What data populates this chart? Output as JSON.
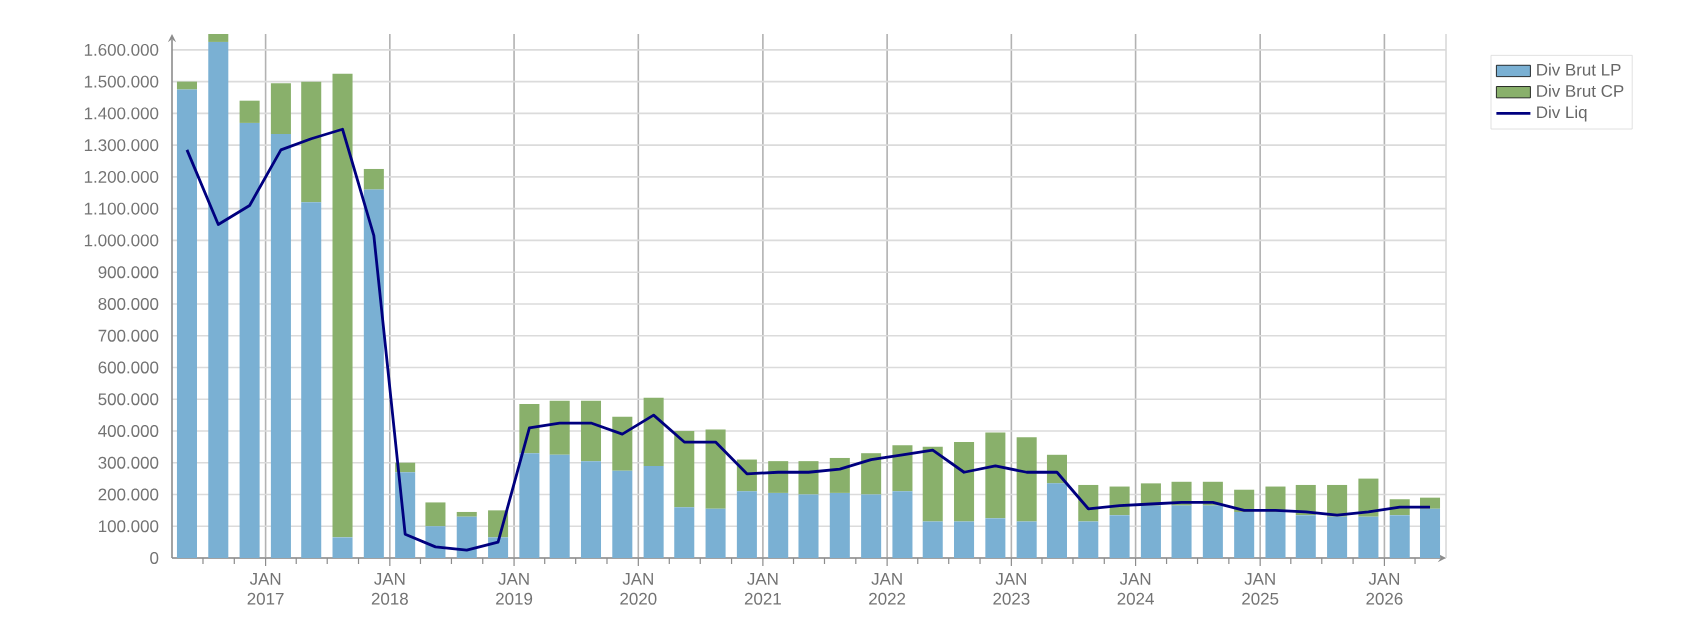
{
  "chart_data": {
    "type": "bar",
    "stacked": true,
    "grid": true,
    "legend": "right",
    "marker": "none",
    "line_style": "solid",
    "x": [
      "2016-05-15",
      "2016-08-15",
      "2016-11-15",
      "2017-02-15",
      "2017-05-15",
      "2017-08-15",
      "2017-11-15",
      "2018-02-15",
      "2018-05-15",
      "2018-08-15",
      "2018-11-15",
      "2019-02-15",
      "2019-05-15",
      "2019-08-15",
      "2019-11-15",
      "2020-02-15",
      "2020-05-15",
      "2020-08-15",
      "2020-11-15",
      "2021-02-15",
      "2021-05-15",
      "2021-08-15",
      "2021-11-15",
      "2022-02-15",
      "2022-05-15",
      "2022-08-15",
      "2022-11-15",
      "2023-02-15",
      "2023-05-15",
      "2023-08-15",
      "2023-11-15",
      "2024-02-15",
      "2024-05-15",
      "2024-08-15",
      "2024-11-15",
      "2025-02-15",
      "2025-05-15",
      "2025-08-15",
      "2025-11-15",
      "2026-02-15",
      "2026-05-15"
    ],
    "series": [
      {
        "name": "Div Brut LP",
        "color": "#7ab0d3",
        "values": [
          1475000,
          1625000,
          1370000,
          1335000,
          1120000,
          65000,
          1160000,
          270000,
          100000,
          130000,
          65000,
          330000,
          325000,
          305000,
          275000,
          290000,
          160000,
          155000,
          210000,
          205000,
          200000,
          205000,
          200000,
          210000,
          115000,
          115000,
          125000,
          115000,
          235000,
          115000,
          135000,
          165000,
          165000,
          165000,
          145000,
          145000,
          135000,
          130000,
          130000,
          135000,
          155000
        ]
      },
      {
        "name": "Div Brut CP",
        "color": "#89b06b",
        "values": [
          25000,
          25000,
          70000,
          160000,
          380000,
          1460000,
          65000,
          30000,
          75000,
          15000,
          85000,
          155000,
          170000,
          190000,
          170000,
          215000,
          240000,
          250000,
          100000,
          100000,
          105000,
          110000,
          130000,
          145000,
          235000,
          250000,
          270000,
          265000,
          90000,
          115000,
          90000,
          70000,
          75000,
          75000,
          70000,
          80000,
          95000,
          100000,
          120000,
          50000,
          35000
        ]
      },
      {
        "name": "Div Liq",
        "type": "line",
        "color": "#00007f",
        "values": [
          1285000,
          1050000,
          1110000,
          1285000,
          1320000,
          1350000,
          1015000,
          75000,
          35000,
          25000,
          50000,
          410000,
          425000,
          425000,
          390000,
          450000,
          365000,
          365000,
          265000,
          270000,
          270000,
          280000,
          310000,
          325000,
          340000,
          270000,
          290000,
          270000,
          270000,
          155000,
          165000,
          170000,
          175000,
          175000,
          150000,
          150000,
          145000,
          135000,
          145000,
          160000,
          160000
        ]
      }
    ],
    "xlim": [
      "2016-04-01",
      "2026-07-01"
    ],
    "xticks": [
      {
        "value": "2016-07-01",
        "label": null
      },
      {
        "value": "2016-10-01",
        "label": null
      },
      {
        "value": "2017-01-01",
        "label": "JAN 2017"
      },
      {
        "value": "2017-04-01",
        "label": null
      },
      {
        "value": "2017-07-01",
        "label": null
      },
      {
        "value": "2017-10-01",
        "label": null
      },
      {
        "value": "2018-01-01",
        "label": "JAN 2018"
      },
      {
        "value": "2018-04-01",
        "label": null
      },
      {
        "value": "2018-07-01",
        "label": null
      },
      {
        "value": "2018-10-01",
        "label": null
      },
      {
        "value": "2019-01-01",
        "label": "JAN 2019"
      },
      {
        "value": "2019-04-01",
        "label": null
      },
      {
        "value": "2019-07-01",
        "label": null
      },
      {
        "value": "2019-10-01",
        "label": null
      },
      {
        "value": "2020-01-01",
        "label": "JAN 2020"
      },
      {
        "value": "2020-04-01",
        "label": null
      },
      {
        "value": "2020-07-01",
        "label": null
      },
      {
        "value": "2020-10-01",
        "label": null
      },
      {
        "value": "2021-01-01",
        "label": "JAN 2021"
      },
      {
        "value": "2021-04-01",
        "label": null
      },
      {
        "value": "2021-07-01",
        "label": null
      },
      {
        "value": "2021-10-01",
        "label": null
      },
      {
        "value": "2022-01-01",
        "label": "JAN 2022"
      },
      {
        "value": "2022-04-01",
        "label": null
      },
      {
        "value": "2022-07-01",
        "label": null
      },
      {
        "value": "2022-10-01",
        "label": null
      },
      {
        "value": "2023-01-01",
        "label": "JAN 2023"
      },
      {
        "value": "2023-04-01",
        "label": null
      },
      {
        "value": "2023-07-01",
        "label": null
      },
      {
        "value": "2023-10-01",
        "label": null
      },
      {
        "value": "2024-01-01",
        "label": "JAN 2024"
      },
      {
        "value": "2024-04-01",
        "label": null
      },
      {
        "value": "2024-07-01",
        "label": null
      },
      {
        "value": "2024-10-01",
        "label": null
      },
      {
        "value": "2025-01-01",
        "label": "JAN 2025"
      },
      {
        "value": "2025-04-01",
        "label": null
      },
      {
        "value": "2025-07-01",
        "label": null
      },
      {
        "value": "2025-10-01",
        "label": null
      },
      {
        "value": "2026-01-01",
        "label": "JAN 2026"
      },
      {
        "value": "2026-04-01",
        "label": null
      }
    ],
    "ylim": [
      0,
      1650000
    ],
    "yticks": [
      {
        "value": 0,
        "label": "0"
      },
      {
        "value": 100000,
        "label": "100.000"
      },
      {
        "value": 200000,
        "label": "200.000"
      },
      {
        "value": 300000,
        "label": "300.000"
      },
      {
        "value": 400000,
        "label": "400.000"
      },
      {
        "value": 500000,
        "label": "500.000"
      },
      {
        "value": 600000,
        "label": "600.000"
      },
      {
        "value": 700000,
        "label": "700.000"
      },
      {
        "value": 800000,
        "label": "800.000"
      },
      {
        "value": 900000,
        "label": "900.000"
      },
      {
        "value": 1000000,
        "label": "1.000.000"
      },
      {
        "value": 1100000,
        "label": "1.100.000"
      },
      {
        "value": 1200000,
        "label": "1.200.000"
      },
      {
        "value": 1300000,
        "label": "1.300.000"
      },
      {
        "value": 1400000,
        "label": "1.400.000"
      },
      {
        "value": 1500000,
        "label": "1.500.000"
      },
      {
        "value": 1600000,
        "label": "1.600.000"
      }
    ]
  }
}
